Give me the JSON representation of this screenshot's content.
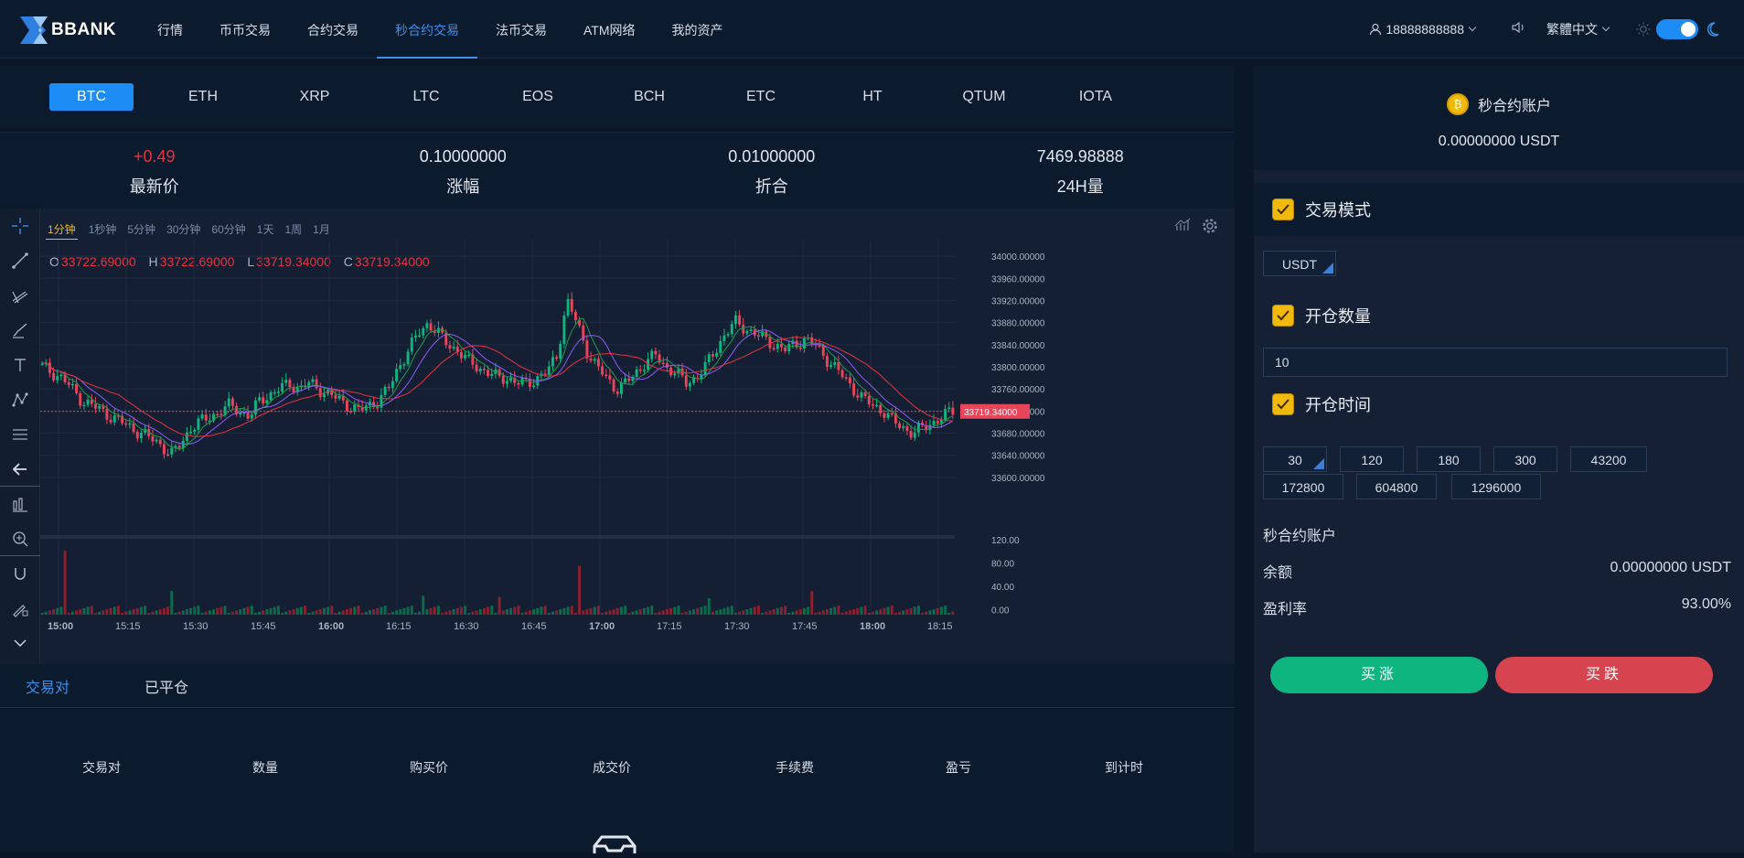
{
  "brand": "BBANK",
  "nav": [
    "行情",
    "币币交易",
    "合约交易",
    "秒合约交易",
    "法币交易",
    "ATM网络",
    "我的资产"
  ],
  "nav_active": 3,
  "header": {
    "user": "18888888888",
    "language": "繁體中文"
  },
  "coins": [
    "BTC",
    "ETH",
    "XRP",
    "LTC",
    "EOS",
    "BCH",
    "ETC",
    "HT",
    "QTUM",
    "IOTA"
  ],
  "coin_active": 0,
  "stats": [
    {
      "value": "+0.49",
      "label": "最新价"
    },
    {
      "value": "0.10000000",
      "label": "涨幅"
    },
    {
      "value": "0.01000000",
      "label": "折合"
    },
    {
      "value": "7469.98888",
      "label": "24H量"
    }
  ],
  "intervals": [
    "1分钟",
    "1秒钟",
    "5分钟",
    "30分钟",
    "60分钟",
    "1天",
    "1周",
    "1月"
  ],
  "interval_active": 0,
  "ohlc": {
    "o": "33722.69000",
    "h": "33722.69000",
    "l": "33719.34000",
    "c": "33719.34000"
  },
  "chart_data": {
    "type": "candlestick",
    "price_ticks": [
      "34000.00000",
      "33960.00000",
      "33920.00000",
      "33880.00000",
      "33840.00000",
      "33800.00000",
      "33760.00000",
      "33720.00000",
      "33680.00000",
      "33640.00000",
      "33600.00000"
    ],
    "volume_ticks": [
      "120.00",
      "80.00",
      "40.00",
      "0.00"
    ],
    "time_ticks": [
      "15:00",
      "15:15",
      "15:30",
      "15:45",
      "16:00",
      "16:15",
      "16:30",
      "16:45",
      "17:00",
      "17:15",
      "17:30",
      "17:45",
      "18:00",
      "18:15"
    ],
    "current_price": "33719.34000",
    "ylim": [
      33580,
      34020
    ],
    "close_path": [
      33800,
      33790,
      33780,
      33760,
      33740,
      33730,
      33720,
      33710,
      33700,
      33690,
      33680,
      33670,
      33660,
      33640,
      33660,
      33690,
      33700,
      33710,
      33720,
      33730,
      33720,
      33710,
      33740,
      33750,
      33760,
      33770,
      33760,
      33770,
      33760,
      33750,
      33740,
      33730,
      33720,
      33730,
      33740,
      33760,
      33800,
      33830,
      33860,
      33880,
      33860,
      33840,
      33830,
      33810,
      33800,
      33790,
      33780,
      33780,
      33770,
      33770,
      33780,
      33790,
      33820,
      33920,
      33880,
      33830,
      33800,
      33780,
      33760,
      33770,
      33790,
      33810,
      33820,
      33800,
      33790,
      33770,
      33780,
      33800,
      33830,
      33860,
      33880,
      33870,
      33860,
      33850,
      33840,
      33830,
      33840,
      33850,
      33840,
      33820,
      33800,
      33780,
      33760,
      33740,
      33730,
      33720,
      33700,
      33690,
      33680,
      33690,
      33700,
      33710,
      33720
    ]
  },
  "bottom_tabs": [
    "交易对",
    "已平仓"
  ],
  "bottom_tab_active": 0,
  "table_headers": [
    "交易对",
    "数量",
    "购买价",
    "成交价",
    "手续费",
    "盈亏",
    "到计时"
  ],
  "right": {
    "account_title": "秒合约账户",
    "account_value": "0.00000000 USDT",
    "mode_title": "交易模式",
    "mode_option": "USDT",
    "qty_title": "开仓数量",
    "qty_value": "10",
    "time_title": "开仓时间",
    "times": [
      "30",
      "120",
      "180",
      "300",
      "43200",
      "172800",
      "604800",
      "1296000"
    ],
    "time_active": 0,
    "account_label": "秒合约账户",
    "balance_label": "余额",
    "balance_value": "0.00000000 USDT",
    "profit_label": "盈利率",
    "profit_value": "93.00%",
    "buy_up": "买涨",
    "buy_down": "买跌"
  },
  "colors": {
    "accent": "#1e8cf5",
    "up": "#0fb57e",
    "down": "#d6444f",
    "gold": "#f0b90b"
  }
}
